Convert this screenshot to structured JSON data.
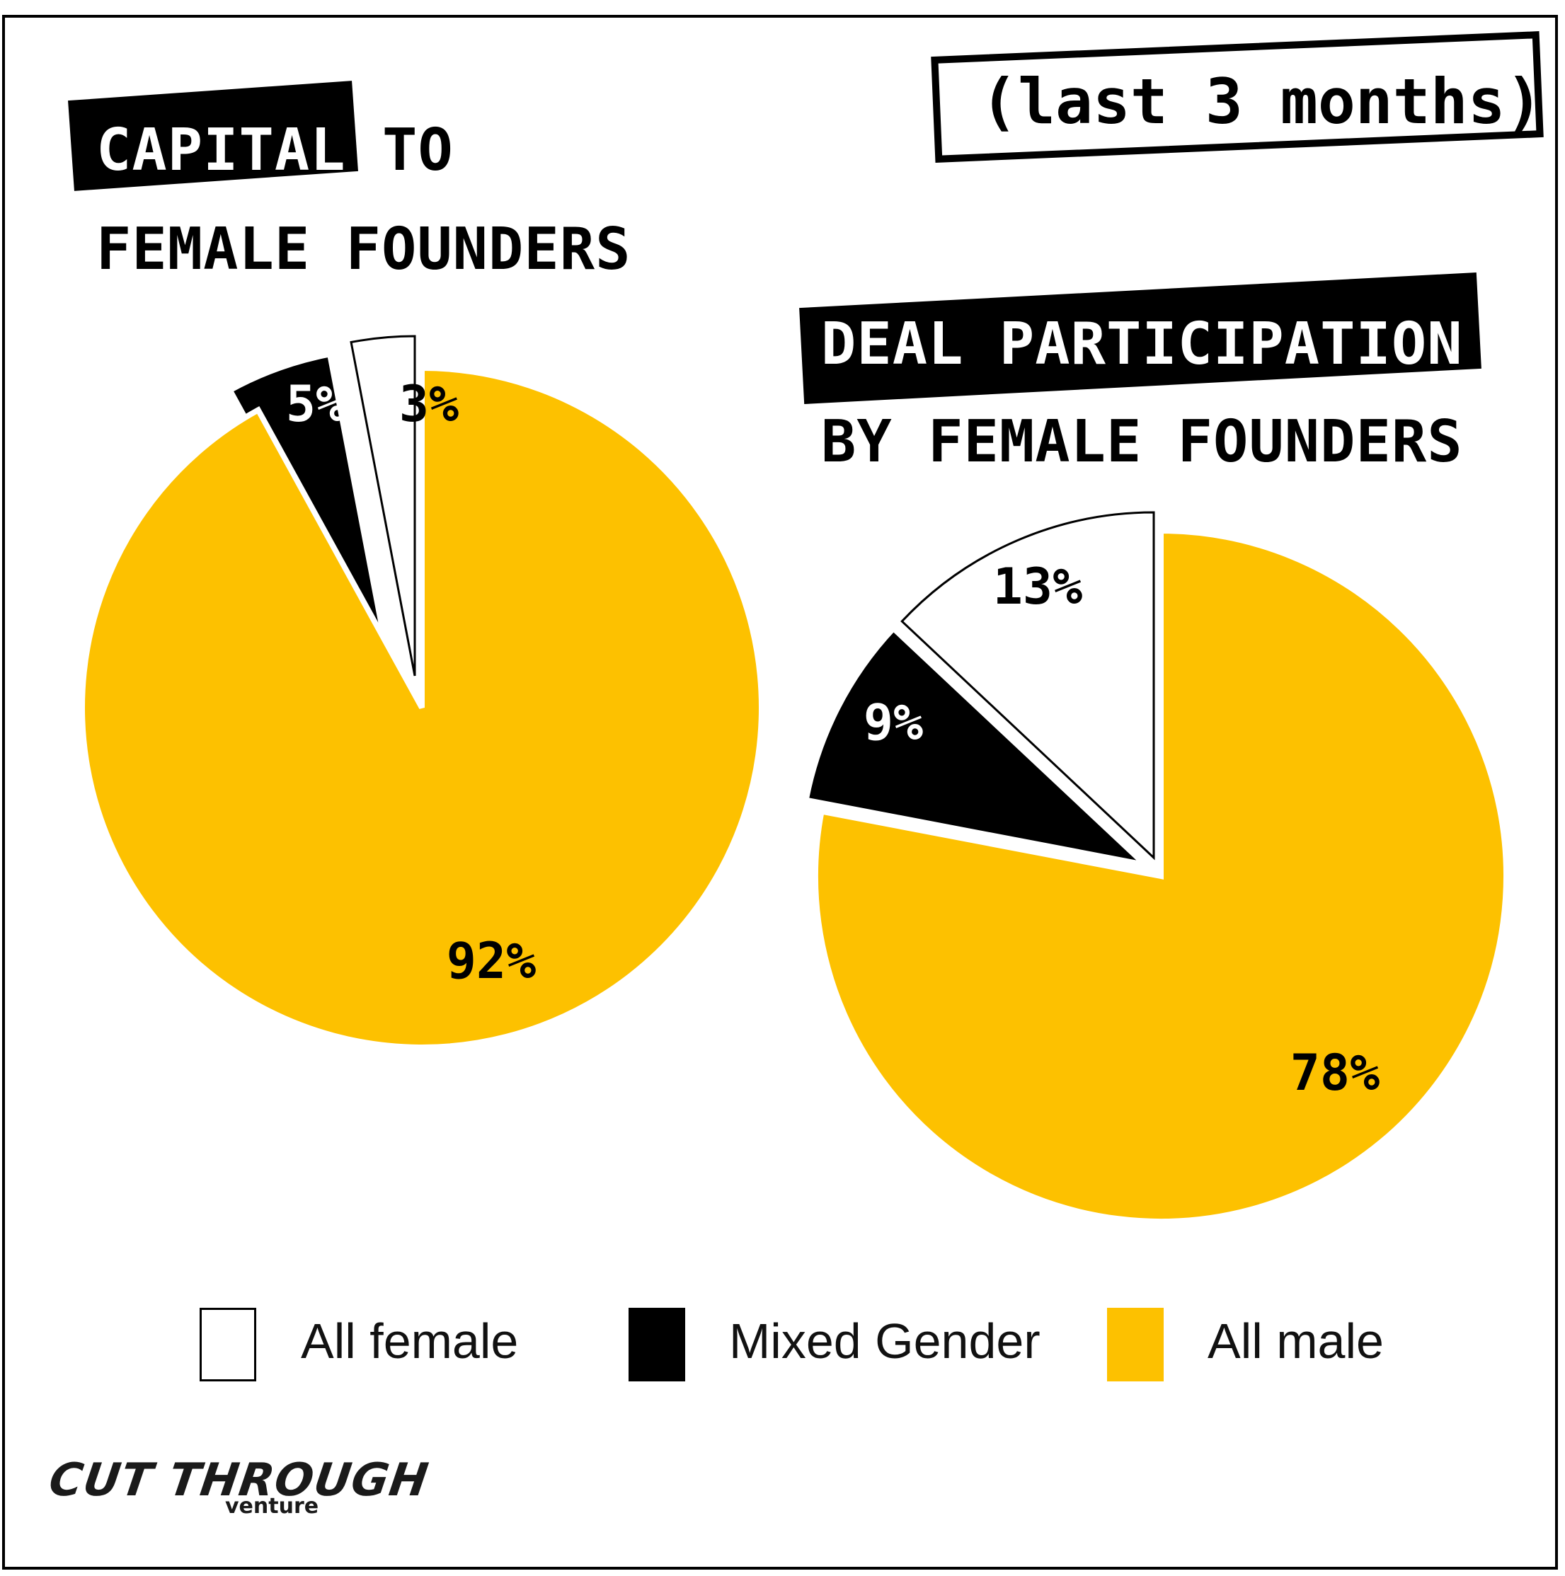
{
  "period": "(last 3 months)",
  "chart1_title": {
    "highlight": "CAPITAL",
    "rest": "TO",
    "line2": "FEMALE FOUNDERS"
  },
  "chart2_title": {
    "highlight": "DEAL PARTICIPATION",
    "line2": "BY FEMALE FOUNDERS"
  },
  "colors": {
    "all_female": "#ffffff",
    "mixed_gender": "#000000",
    "all_male": "#fdc100",
    "outline": "#000000"
  },
  "chart_data": [
    {
      "type": "pie",
      "title": "CAPITAL TO FEMALE FOUNDERS",
      "categories": [
        "All female",
        "Mixed Gender",
        "All male"
      ],
      "values": [
        3,
        5,
        92
      ],
      "labels": [
        "3%",
        "5%",
        "92%"
      ],
      "order": "counter-clockwise from 12 o'clock: All female, Mixed Gender, All male",
      "exploded": [
        "All female",
        "Mixed Gender"
      ]
    },
    {
      "type": "pie",
      "title": "DEAL PARTICIPATION BY FEMALE FOUNDERS",
      "categories": [
        "All female",
        "Mixed Gender",
        "All male"
      ],
      "values": [
        13,
        9,
        78
      ],
      "labels": [
        "13%",
        "9%",
        "78%"
      ],
      "order": "counter-clockwise from 12 o'clock: All female, Mixed Gender, All male",
      "exploded": [
        "All female",
        "Mixed Gender"
      ]
    }
  ],
  "legend": [
    {
      "label": "All female",
      "color": "#ffffff"
    },
    {
      "label": "Mixed Gender",
      "color": "#000000"
    },
    {
      "label": "All male",
      "color": "#fdc100"
    }
  ],
  "logo": {
    "main": "CUT THROUGH",
    "sub": "venture"
  }
}
